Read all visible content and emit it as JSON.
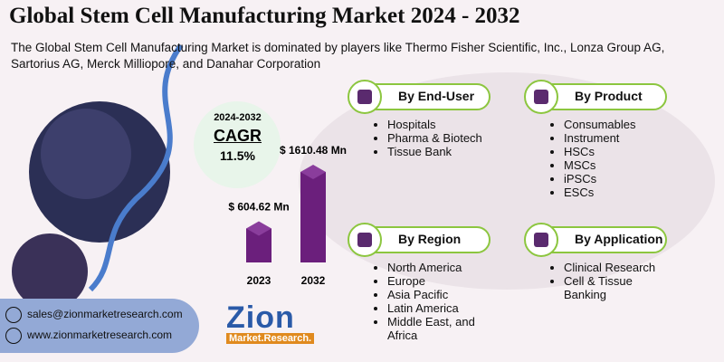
{
  "header": {
    "title": "Global Stem Cell Manufacturing Market 2024 - 2032",
    "subtitle": "The Global Stem Cell Manufacturing Market is dominated by players like Thermo Fisher Scientific, Inc., Lonza Group AG, Sartorius AG, Merck Milliopore, and Danahar Corporation"
  },
  "cagr": {
    "period": "2024-2032",
    "label": "CAGR",
    "value": "11.5%"
  },
  "chart_data": {
    "type": "bar",
    "categories": [
      "2023",
      "2032"
    ],
    "values": [
      604.62,
      1610.48
    ],
    "value_labels": [
      "$ 604.62 Mn",
      "$ 1610.48 Mn"
    ],
    "color": "#6b1f7c"
  },
  "segments": [
    {
      "title": "By End-User",
      "items": [
        "Hospitals",
        "Pharma & Biotech",
        "Tissue Bank"
      ]
    },
    {
      "title": "By Product",
      "items": [
        "Consumables",
        "Instrument",
        "HSCs",
        "MSCs",
        "iPSCs",
        "ESCs"
      ]
    },
    {
      "title": "By Region",
      "items": [
        "North America",
        "Europe",
        "Asia Pacific",
        "Latin America",
        "Middle East, and Africa"
      ]
    },
    {
      "title": "By Application",
      "items": [
        "Clinical Research",
        "Cell & Tissue Banking"
      ]
    }
  ],
  "contact": {
    "email": "sales@zionmarketresearch.com",
    "website": "www.zionmarketresearch.com"
  },
  "logo": {
    "name": "Zion",
    "tagline": "Market.Research."
  }
}
